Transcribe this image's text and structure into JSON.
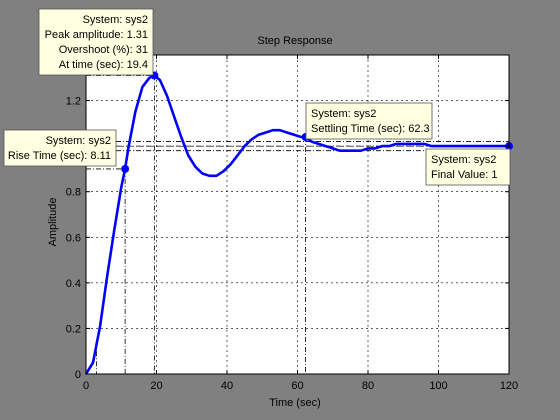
{
  "figure": {
    "background": "#808080",
    "axes_background": "#ffffff"
  },
  "chart_data": {
    "type": "line",
    "title": "Step Response",
    "xlabel": "Time (sec)",
    "ylabel": "Amplitude",
    "xlim": [
      0,
      120
    ],
    "ylim": [
      0,
      1.4
    ],
    "xticks": [
      0,
      20,
      40,
      60,
      80,
      100,
      120
    ],
    "yticks": [
      0,
      0.2,
      0.4,
      0.6,
      0.8,
      1,
      1.2
    ],
    "xtick_labels": [
      "0",
      "20",
      "40",
      "60",
      "80",
      "100",
      "120"
    ],
    "ytick_labels": [
      "0",
      "0.2",
      "0.4",
      "0.6",
      "0.8",
      "1",
      "1.2"
    ],
    "grid": true,
    "series": [
      {
        "color": "#0000ff",
        "x": [
          0,
          2,
          4,
          6,
          8,
          10,
          11.1,
          12,
          14,
          16,
          18,
          19.4,
          21,
          23,
          25,
          27,
          29,
          31,
          33,
          35,
          37,
          39,
          41,
          43,
          45,
          47,
          49,
          51,
          53,
          55,
          57,
          59,
          61,
          62.3,
          64,
          66,
          68,
          70,
          72,
          74,
          76,
          78,
          80,
          82,
          84,
          86,
          88,
          90,
          92,
          94,
          96,
          98,
          100,
          102,
          104,
          106,
          108,
          110,
          112,
          114,
          116,
          118,
          120
        ],
        "y": [
          0,
          0.05,
          0.21,
          0.43,
          0.63,
          0.82,
          0.9,
          0.99,
          1.15,
          1.26,
          1.3,
          1.31,
          1.29,
          1.22,
          1.13,
          1.04,
          0.96,
          0.91,
          0.88,
          0.87,
          0.87,
          0.89,
          0.92,
          0.96,
          1.0,
          1.03,
          1.05,
          1.06,
          1.07,
          1.07,
          1.06,
          1.05,
          1.04,
          1.04,
          1.02,
          1.01,
          1.0,
          0.99,
          0.98,
          0.98,
          0.98,
          0.98,
          0.99,
          0.99,
          1.0,
          1.0,
          1.01,
          1.01,
          1.01,
          1.01,
          1.01,
          1.0,
          1.0,
          1.0,
          1.0,
          1.0,
          1.0,
          1.0,
          1.0,
          1.0,
          1.0,
          1.0,
          1.0
        ]
      }
    ],
    "characteristics": [
      {
        "key": "rise",
        "x": 11.1,
        "y": 0.9,
        "lines": [
          "System: sys2",
          "Rise Time (sec): 8.11"
        ]
      },
      {
        "key": "peak",
        "x": 19.4,
        "y": 1.31,
        "lines": [
          "System: sys2",
          "Peak amplitude: 1.31",
          "Overshoot (%): 31",
          "At time (sec): 19.4"
        ]
      },
      {
        "key": "settling",
        "x": 62.3,
        "y": 1.04,
        "lines": [
          "System: sys2",
          "Settling Time (sec): 62.3"
        ]
      },
      {
        "key": "final",
        "x": 120,
        "y": 1.0,
        "lines": [
          "System: sys2",
          "Final Value: 1"
        ]
      }
    ],
    "rise_start_time": 3.0,
    "settling_band": [
      0.98,
      1.02
    ],
    "final_value": 1.0
  }
}
